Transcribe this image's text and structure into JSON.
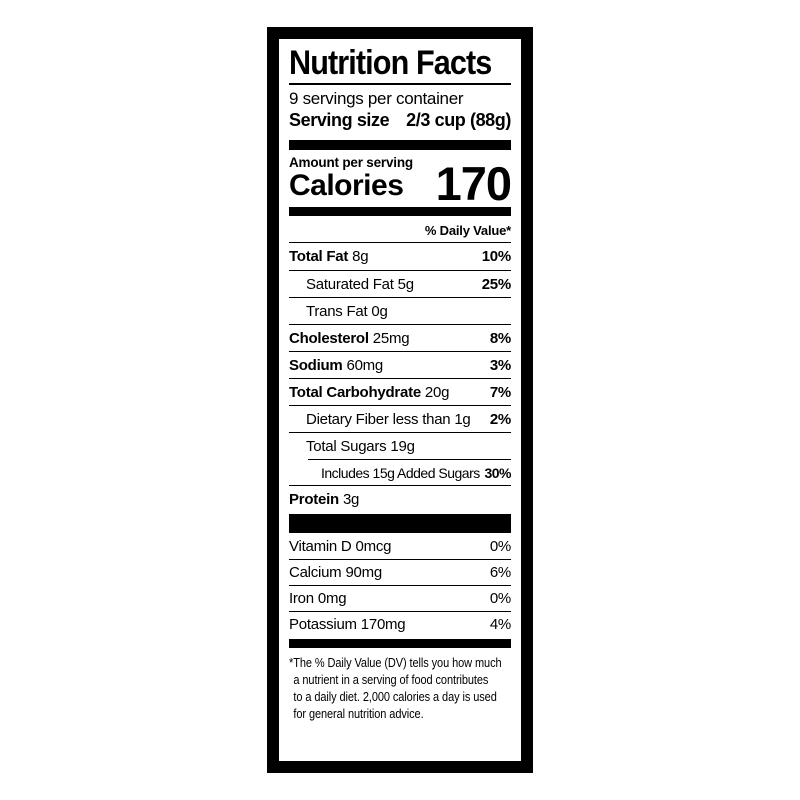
{
  "label": {
    "title": "Nutrition Facts",
    "servings_per_container": "9 servings per container",
    "serving_size": {
      "label": "Serving size",
      "value": "2/3 cup (88g)"
    },
    "calories": {
      "context": "Amount per serving",
      "label": "Calories",
      "value": "170"
    },
    "daily_value_header": "% Daily Value*",
    "nutrients": [
      {
        "name": "Total Fat",
        "amount": "8g",
        "dv": "10%"
      },
      {
        "name": "Saturated Fat",
        "amount": "5g",
        "dv": "25%"
      },
      {
        "name": "Trans Fat",
        "amount": "0g",
        "dv": ""
      },
      {
        "name": "Cholesterol",
        "amount": "25mg",
        "dv": "8%"
      },
      {
        "name": "Sodium",
        "amount": "60mg",
        "dv": "3%"
      },
      {
        "name": "Total Carbohydrate",
        "amount": "20g",
        "dv": "7%"
      },
      {
        "name": "Dietary Fiber",
        "amount": "less than 1g",
        "dv": "2%"
      },
      {
        "name": "Total Sugars",
        "amount": "19g",
        "dv": ""
      },
      {
        "name": "Includes 15g Added Sugars",
        "amount": "",
        "dv": "30%"
      },
      {
        "name": "Protein",
        "amount": "3g",
        "dv": ""
      }
    ],
    "vitamins": [
      {
        "name": "Vitamin D",
        "amount": "0mcg",
        "dv": "0%"
      },
      {
        "name": "Calcium",
        "amount": "90mg",
        "dv": "6%"
      },
      {
        "name": "Iron",
        "amount": "0mg",
        "dv": "0%"
      },
      {
        "name": "Potassium",
        "amount": "170mg",
        "dv": "4%"
      }
    ],
    "footnote_lines": [
      "*The % Daily Value (DV) tells you how much",
      "a nutrient in a serving of food contributes",
      "to a daily diet.  2,000 calories a day is used",
      "for general nutrition advice."
    ],
    "colors": {
      "ink": "#000000",
      "background": "#ffffff"
    }
  }
}
